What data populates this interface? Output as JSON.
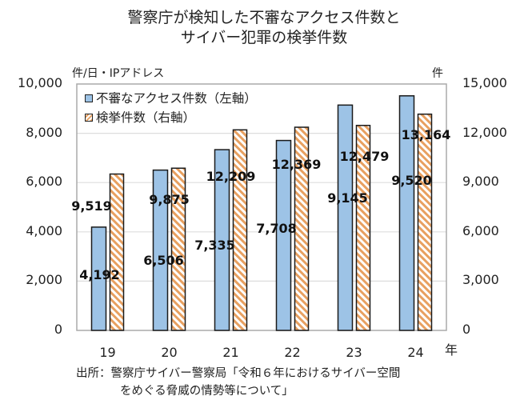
{
  "chart_data": {
    "type": "bar",
    "title": [
      "警察庁が検知した不審なアクセス件数と",
      "サイバー犯罪の検挙件数"
    ],
    "categories": [
      "19",
      "20",
      "21",
      "22",
      "23",
      "24"
    ],
    "xlabel": "年",
    "y_left": {
      "label": "件/日・IPアドレス",
      "ylim": [
        0,
        10000
      ],
      "ticks": [
        "0",
        "2,000",
        "4,000",
        "6,000",
        "8,000",
        "10,000"
      ]
    },
    "y_right": {
      "label": "件",
      "ylim": [
        0,
        15000
      ],
      "ticks": [
        "0",
        "3,000",
        "6,000",
        "9,000",
        "12,000",
        "15,000"
      ]
    },
    "grid": true,
    "legend_position": "top-left",
    "series": [
      {
        "name": "不審なアクセス件数（左軸）",
        "axis": "left",
        "color": "#9DC3E6",
        "values": [
          4192,
          6506,
          7335,
          7708,
          9145,
          9520
        ],
        "labels": [
          "4,192",
          "6,506",
          "7,335",
          "7,708",
          "9,145",
          "9,520"
        ]
      },
      {
        "name": "検挙件数（右軸）",
        "axis": "right",
        "color": "#E8A060",
        "pattern": "hatch",
        "values": [
          9519,
          9875,
          12209,
          12369,
          12479,
          13164
        ],
        "labels": [
          "9,519",
          "9,875",
          "12,209",
          "12,369",
          "12,479",
          "13,164"
        ]
      }
    ],
    "source": [
      "出所：警察庁サイバー警察局「令和６年におけるサイバー空間",
      "をめぐる脅威の情勢等について」"
    ]
  }
}
